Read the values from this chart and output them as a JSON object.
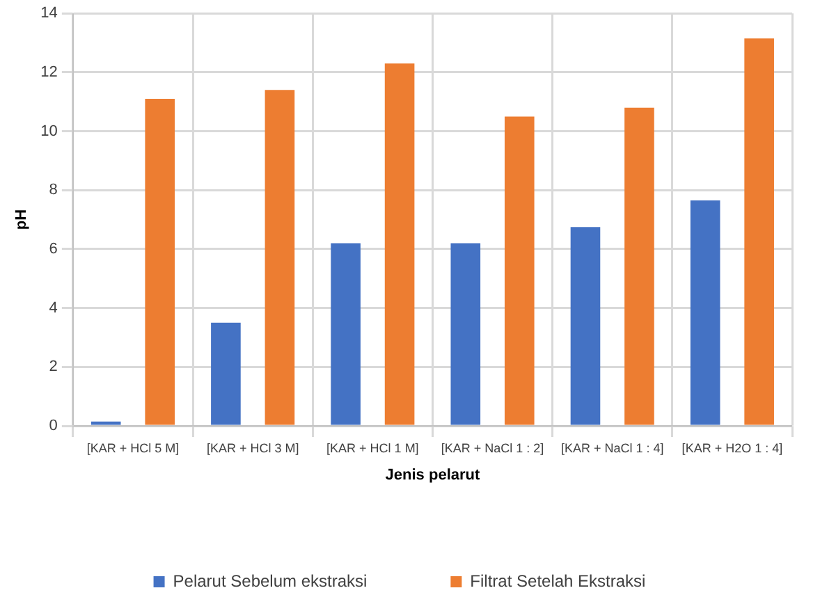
{
  "chart_data": {
    "type": "bar",
    "xlabel": "Jenis pelarut",
    "ylabel": "pH",
    "categories": [
      "[KAR + HCl 5 M]",
      "[KAR + HCl 3 M]",
      "[KAR + HCl 1 M]",
      "[KAR + NaCl 1 : 2]",
      "[KAR + NaCl 1 : 4]",
      "[KAR + H2O 1 : 4]"
    ],
    "series": [
      {
        "name": "Pelarut Sebelum ekstraksi",
        "color": "#4472c4",
        "values": [
          0.15,
          3.5,
          6.2,
          6.2,
          6.75,
          7.65
        ]
      },
      {
        "name": "Filtrat Setelah Ekstraksi",
        "color": "#ed7d31",
        "values": [
          11.1,
          11.4,
          12.3,
          10.5,
          10.8,
          13.15
        ]
      }
    ],
    "ylim": [
      0,
      14
    ],
    "yticks": [
      0,
      2,
      4,
      6,
      8,
      10,
      12,
      14
    ],
    "grid": true,
    "legend": "bottom"
  }
}
